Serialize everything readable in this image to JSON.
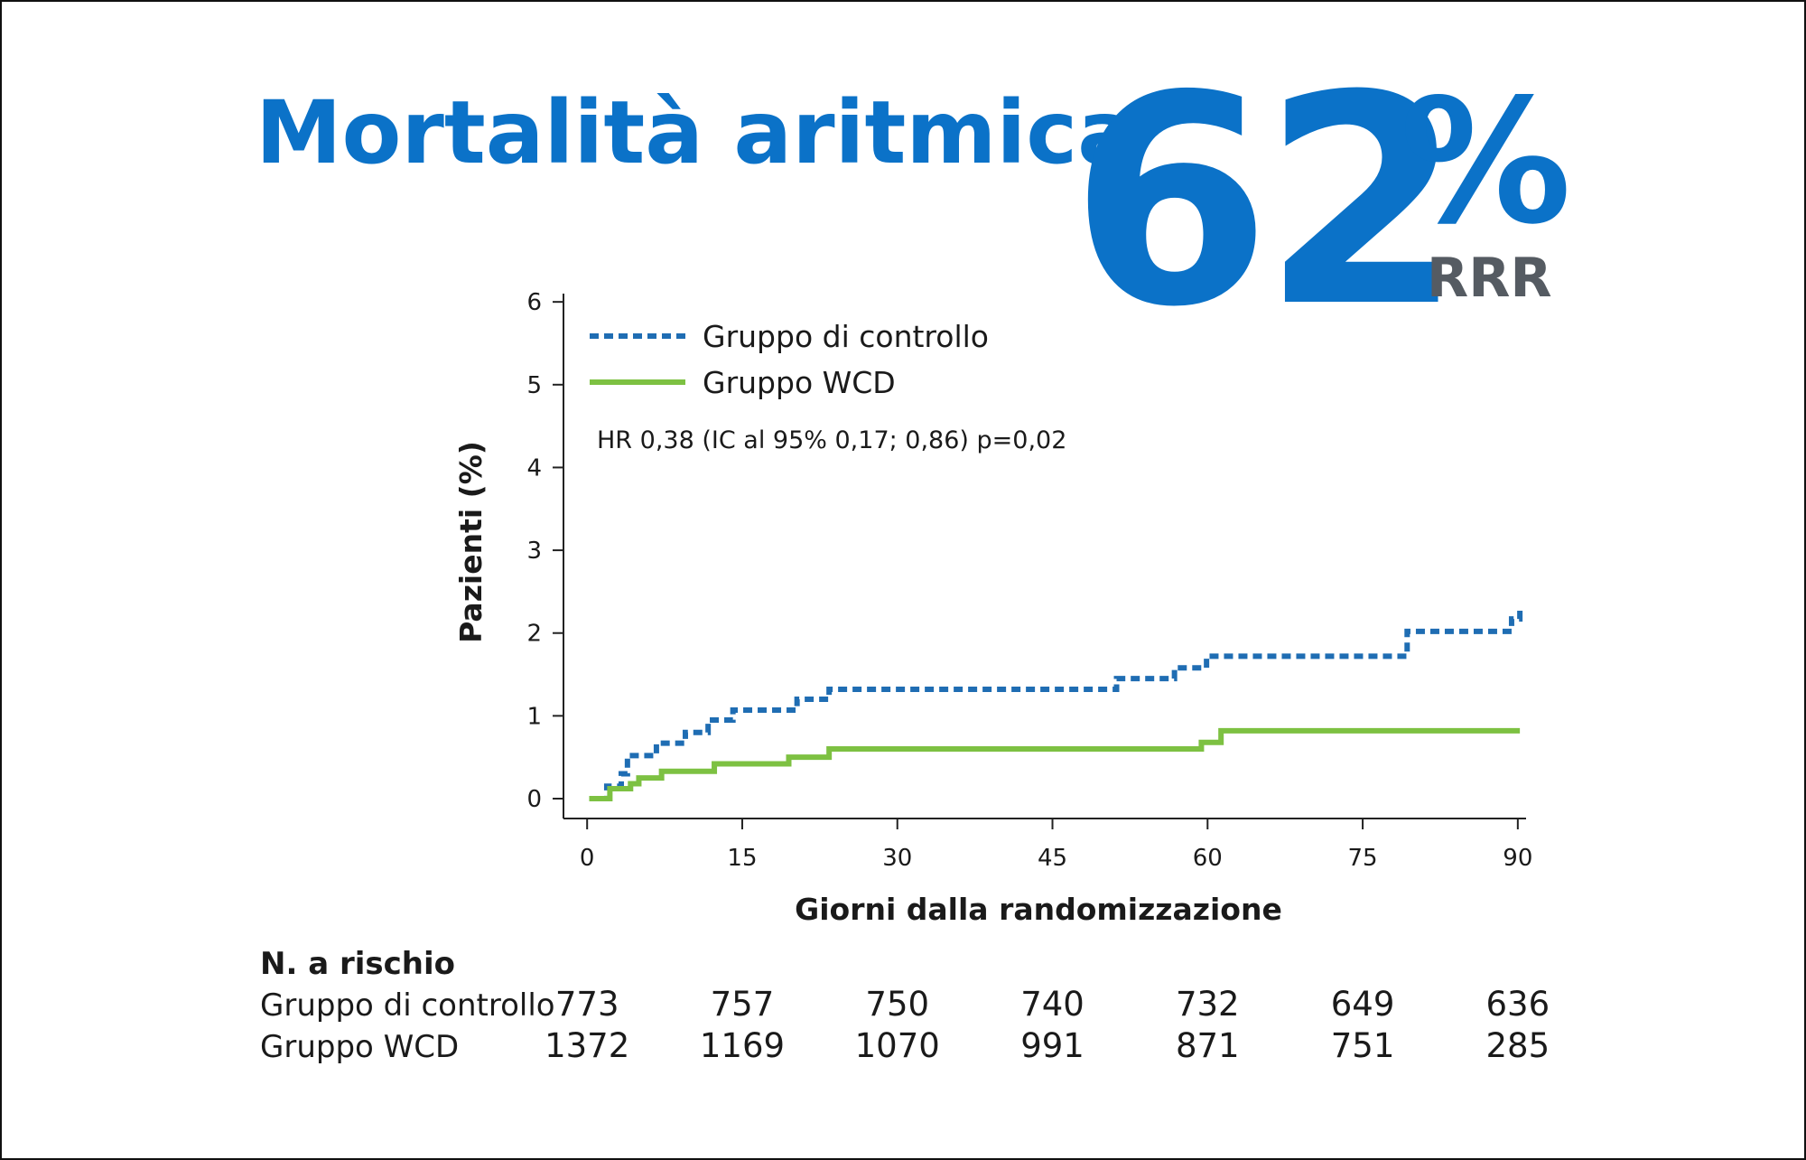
{
  "header": {
    "title": "Mortalità aritmica",
    "stat": "62",
    "stat_unit": "%",
    "stat_label": "RRR"
  },
  "chart_data": {
    "type": "step",
    "xlabel": "Giorni dalla randomizzazione",
    "ylabel": "Pazienti (%)",
    "annotation": "HR 0,38 (IC al 95% 0,17; 0,86) p=0,02",
    "xlim": [
      -2.2,
      90.8
    ],
    "xticks": [
      0,
      15,
      30,
      45,
      60,
      75,
      90
    ],
    "ylim": [
      -0.24,
      6.1
    ],
    "yticks": [
      0,
      1,
      2,
      3,
      4,
      5,
      6
    ],
    "series": [
      {
        "name": "Gruppo di controllo",
        "color": "#1f6db3",
        "dashed": true,
        "x": [
          1.3,
          1.9,
          1.9,
          3.3,
          3.3,
          3.9,
          3.9,
          6.7,
          6.7,
          9.5,
          9.5,
          11.7,
          11.7,
          14.1,
          14.1,
          20.3,
          20.3,
          23.4,
          23.4,
          51.2,
          51.2,
          56.8,
          56.8,
          59.9,
          59.9,
          79.3,
          79.3,
          89.4,
          89.4,
          90.2,
          90.2
        ],
        "values": [
          0,
          0,
          0.15,
          0.15,
          0.3,
          0.3,
          0.52,
          0.52,
          0.67,
          0.67,
          0.8,
          0.8,
          0.95,
          0.95,
          1.07,
          1.07,
          1.2,
          1.2,
          1.32,
          1.32,
          1.45,
          1.45,
          1.58,
          1.58,
          1.72,
          1.72,
          2.02,
          2.02,
          2.17,
          2.17,
          2.3
        ]
      },
      {
        "name": "Gruppo WCD",
        "color": "#7dc142",
        "dashed": false,
        "x": [
          0.2,
          2.2,
          2.2,
          4.2,
          4.2,
          5,
          5,
          7.2,
          7.2,
          12.3,
          12.3,
          19.5,
          19.5,
          23.4,
          23.4,
          59.4,
          59.4,
          61.3,
          61.3,
          90.2
        ],
        "values": [
          0,
          0,
          0.12,
          0.12,
          0.18,
          0.18,
          0.25,
          0.25,
          0.33,
          0.33,
          0.42,
          0.42,
          0.5,
          0.5,
          0.6,
          0.6,
          0.68,
          0.68,
          0.82,
          0.82
        ]
      }
    ],
    "risk_table": {
      "title": "N. a rischio",
      "rows": [
        {
          "name": "Gruppo di controllo",
          "values": [
            773,
            757,
            750,
            740,
            732,
            649,
            636
          ]
        },
        {
          "name": "Gruppo WCD",
          "values": [
            1372,
            1169,
            1070,
            991,
            871,
            751,
            285
          ]
        }
      ]
    }
  }
}
